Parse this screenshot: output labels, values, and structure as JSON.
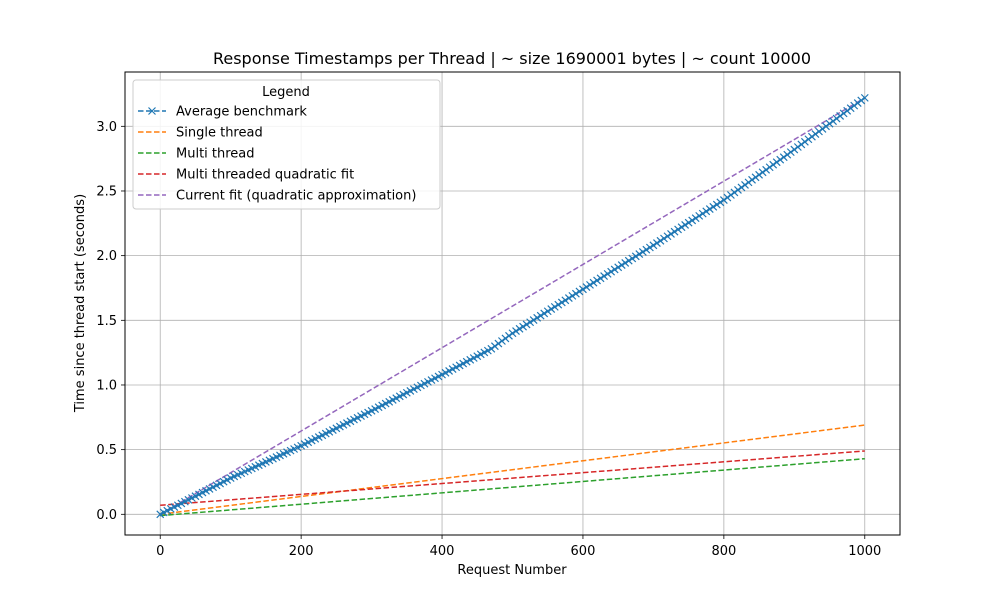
{
  "chart_data": {
    "type": "line",
    "title": "Response Timestamps per Thread | ~ size 1690001 bytes | ~ count 10000",
    "xlabel": "Request Number",
    "ylabel": "Time since thread start (seconds)",
    "xlim": [
      -50,
      1050
    ],
    "ylim": [
      -0.16,
      3.42
    ],
    "xticks": [
      0,
      200,
      400,
      600,
      800,
      1000
    ],
    "yticks": [
      0.0,
      0.5,
      1.0,
      1.5,
      2.0,
      2.5,
      3.0
    ],
    "grid": true,
    "legend": {
      "title": "Legend",
      "placement": "top-left"
    },
    "series": [
      {
        "name": "Average benchmark",
        "color": "#1f77b4",
        "style": "dashed",
        "marker": "x",
        "points": [
          [
            0,
            0.0
          ],
          [
            100,
            0.28
          ],
          [
            200,
            0.53
          ],
          [
            300,
            0.8
          ],
          [
            400,
            1.08
          ],
          [
            470,
            1.28
          ],
          [
            500,
            1.4
          ],
          [
            600,
            1.74
          ],
          [
            700,
            2.08
          ],
          [
            800,
            2.43
          ],
          [
            900,
            2.82
          ],
          [
            1000,
            3.22
          ]
        ]
      },
      {
        "name": "Single thread",
        "color": "#ff7f0e",
        "style": "dashed",
        "points": [
          [
            0,
            0.0
          ],
          [
            1000,
            0.69
          ]
        ]
      },
      {
        "name": "Multi thread",
        "color": "#2ca02c",
        "style": "dashed",
        "points": [
          [
            0,
            -0.01
          ],
          [
            1000,
            0.43
          ]
        ]
      },
      {
        "name": "Multi threaded quadratic fit",
        "color": "#d62728",
        "style": "dashed",
        "points": [
          [
            0,
            0.07
          ],
          [
            1000,
            0.49
          ]
        ]
      },
      {
        "name": "Current fit (quadratic approximation)",
        "color": "#9467bd",
        "style": "dashed",
        "points": [
          [
            0,
            0.0
          ],
          [
            1000,
            3.22
          ]
        ]
      }
    ]
  }
}
